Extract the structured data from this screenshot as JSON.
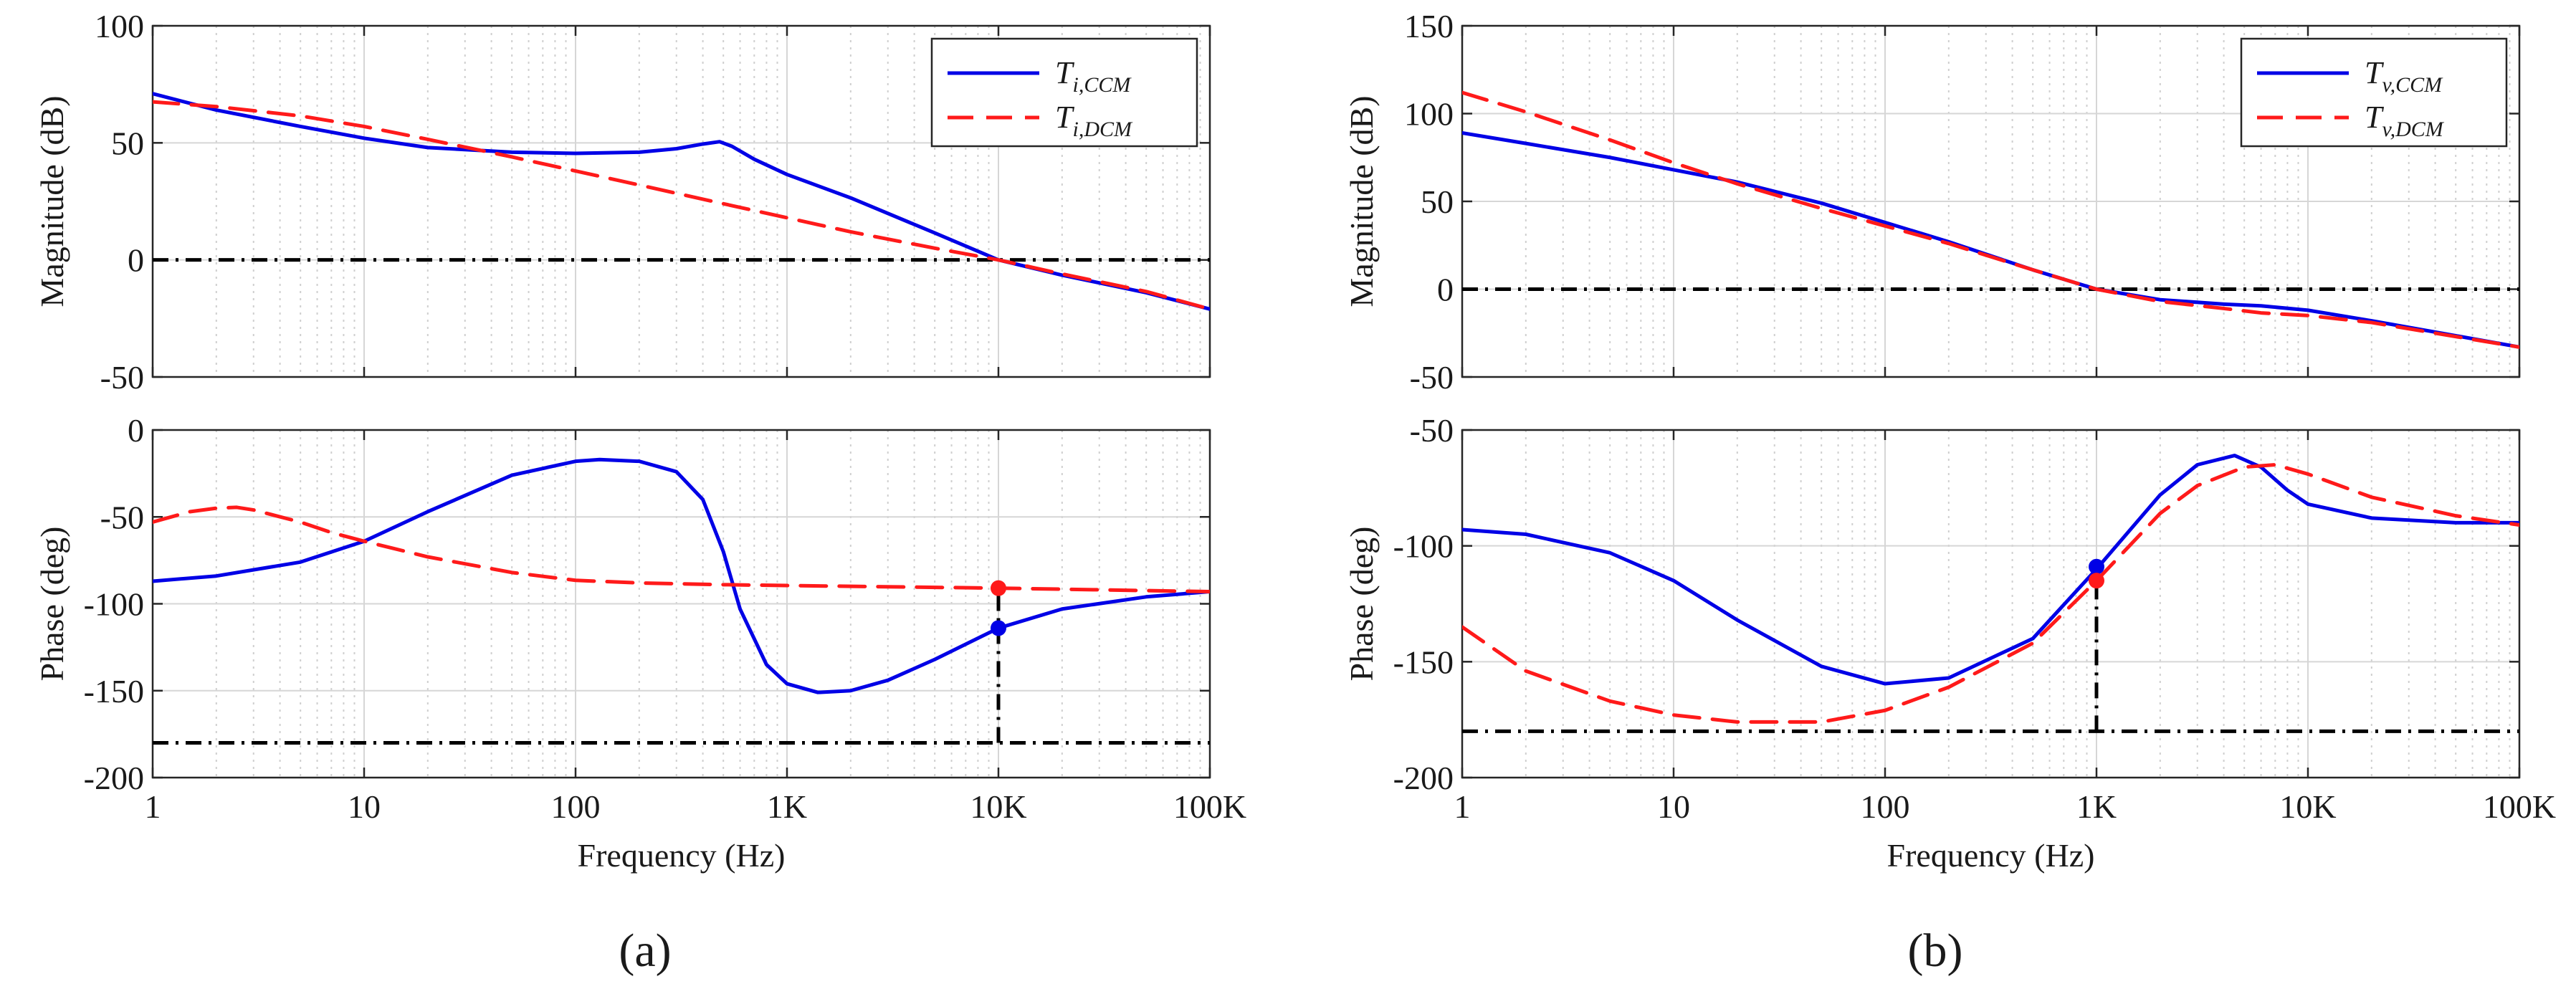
{
  "colors": {
    "ccm": "#0000e6",
    "dcm": "#ff1a1a",
    "reference": "#000000"
  },
  "panel_labels": [
    "(a)",
    "(b)"
  ],
  "chart_data": [
    {
      "id": "a",
      "type": "line",
      "panel_label": "(a)",
      "xscale": "log",
      "xlabel": "Frequency (Hz)",
      "xlim": [
        1,
        100000
      ],
      "xticks": [
        1,
        10,
        100,
        1000,
        10000,
        100000
      ],
      "xtick_labels": [
        "1",
        "10",
        "100",
        "1K",
        "10K",
        "100K"
      ],
      "legend": {
        "placement": "top-right",
        "entries": [
          {
            "base": "T",
            "sub": "i,CCM",
            "series": "ccm"
          },
          {
            "base": "T",
            "sub": "i,DCM",
            "series": "dcm"
          }
        ]
      },
      "crossover_hz": 10000,
      "magnitude": {
        "ylabel": "Magnitude (dB)",
        "ylim": [
          -50,
          100
        ],
        "yticks": [
          -50,
          0,
          50,
          100
        ],
        "reference_y": 0,
        "series": {
          "ccm": {
            "x": [
              1,
              2,
              5,
              10,
              20,
              50,
              100,
              200,
              300,
              400,
              480,
              550,
              700,
              1000,
              2000,
              5000,
              10000,
              20000,
              50000,
              100000
            ],
            "y": [
              71,
              64,
              57,
              52,
              48,
              46,
              45.5,
              46,
              47.5,
              49.5,
              50.5,
              48.5,
              43,
              36.5,
              26.5,
              11.5,
              0,
              -6.5,
              -14,
              -21
            ]
          },
          "dcm": {
            "x": [
              1,
              2,
              5,
              10,
              20,
              50,
              100,
              200,
              500,
              1000,
              2000,
              5000,
              10000,
              20000,
              50000,
              100000
            ],
            "y": [
              67.5,
              65.5,
              61.5,
              57,
              51.5,
              44,
              38,
              32,
              24,
              18,
              12,
              5,
              0,
              -6,
              -13.5,
              -21
            ]
          }
        }
      },
      "phase": {
        "ylabel": "Phase (deg)",
        "ylim": [
          -200,
          0
        ],
        "yticks": [
          -200,
          -150,
          -100,
          -50,
          0
        ],
        "reference_y": -180,
        "series": {
          "ccm": {
            "x": [
              1,
              2,
              5,
              10,
              20,
              50,
              100,
              130,
              200,
              300,
              400,
              500,
              600,
              800,
              1000,
              1400,
              2000,
              3000,
              5000,
              10000,
              20000,
              50000,
              100000
            ],
            "y": [
              -87,
              -84,
              -76,
              -64,
              -47,
              -26,
              -18,
              -17,
              -18,
              -24,
              -40,
              -70,
              -103,
              -135,
              -146,
              -151,
              -150,
              -144,
              -132,
              -114,
              -103,
              -96,
              -93
            ]
          },
          "dcm": {
            "x": [
              1,
              1.5,
              2,
              2.5,
              3,
              5,
              7,
              10,
              20,
              50,
              100,
              200,
              500,
              1000,
              10000,
              100000
            ],
            "y": [
              -53,
              -47,
              -45,
              -44.5,
              -46,
              -53,
              -59,
              -64,
              -73,
              -82,
              -86.5,
              -88,
              -89,
              -89.5,
              -91,
              -93
            ]
          }
        },
        "markers": [
          {
            "series": "dcm",
            "x": 10000,
            "y": -91
          },
          {
            "series": "ccm",
            "x": 10000,
            "y": -114
          }
        ]
      }
    },
    {
      "id": "b",
      "type": "line",
      "panel_label": "(b)",
      "xscale": "log",
      "xlabel": "Frequency (Hz)",
      "xlim": [
        1,
        100000
      ],
      "xticks": [
        1,
        10,
        100,
        1000,
        10000,
        100000
      ],
      "xtick_labels": [
        "1",
        "10",
        "100",
        "1K",
        "10K",
        "100K"
      ],
      "legend": {
        "placement": "top-right",
        "entries": [
          {
            "base": "T",
            "sub": "v,CCM",
            "series": "ccm"
          },
          {
            "base": "T",
            "sub": "v,DCM",
            "series": "dcm"
          }
        ]
      },
      "crossover_hz": 1000,
      "magnitude": {
        "ylabel": "Magnitude (dB)",
        "ylim": [
          -50,
          150
        ],
        "yticks": [
          -50,
          0,
          50,
          100,
          150
        ],
        "reference_y": 0,
        "series": {
          "ccm": {
            "x": [
              1,
              2,
              5,
              10,
              20,
              50,
              100,
              200,
              500,
              1000,
              2000,
              4000,
              6000,
              10000,
              20000,
              50000,
              100000
            ],
            "y": [
              89,
              83,
              75,
              68,
              61,
              49,
              38,
              27,
              11,
              0,
              -6,
              -8.5,
              -9.5,
              -12,
              -18,
              -26.5,
              -33
            ]
          },
          "dcm": {
            "x": [
              1,
              2,
              5,
              10,
              20,
              50,
              100,
              200,
              500,
              1000,
              2000,
              4000,
              6000,
              10000,
              20000,
              50000,
              100000
            ],
            "y": [
              112,
              101,
              85,
              72,
              60,
              46,
              36,
              26,
              11,
              0,
              -7,
              -11,
              -13.5,
              -15,
              -19,
              -27,
              -33
            ]
          }
        }
      },
      "phase": {
        "ylabel": "Phase (deg)",
        "ylim": [
          -200,
          -50
        ],
        "yticks": [
          -200,
          -150,
          -100,
          -50
        ],
        "reference_y": -180,
        "series": {
          "ccm": {
            "x": [
              1,
              2,
              5,
              10,
              20,
              50,
              100,
              200,
              500,
              1000,
              2000,
              3000,
              4500,
              6000,
              8000,
              10000,
              20000,
              50000,
              100000
            ],
            "y": [
              -93,
              -95,
              -103,
              -115,
              -132,
              -152,
              -159.5,
              -157,
              -140,
              -110,
              -78,
              -65,
              -61,
              -66,
              -76,
              -82,
              -88,
              -90,
              -90
            ]
          },
          "dcm": {
            "x": [
              1,
              2,
              5,
              10,
              20,
              50,
              100,
              200,
              500,
              1000,
              2000,
              3000,
              5000,
              7000,
              10000,
              20000,
              50000,
              100000
            ],
            "y": [
              -135,
              -154,
              -167,
              -173,
              -176,
              -176,
              -171,
              -161,
              -142,
              -115,
              -86,
              -74,
              -66,
              -65,
              -69,
              -79,
              -87,
              -91
            ]
          }
        },
        "markers": [
          {
            "series": "ccm",
            "x": 1000,
            "y": -109
          },
          {
            "series": "dcm",
            "x": 1000,
            "y": -115
          }
        ]
      }
    }
  ]
}
